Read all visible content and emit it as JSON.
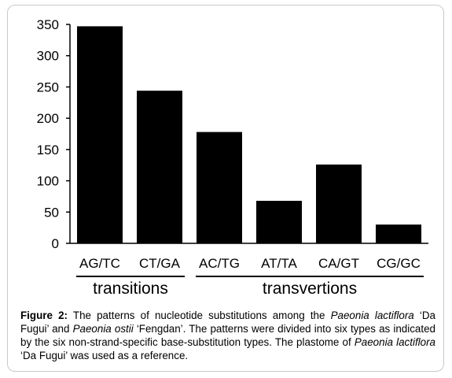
{
  "chart_data": {
    "type": "bar",
    "categories": [
      "AG/TC",
      "CT/GA",
      "AC/TG",
      "AT/TA",
      "CA/GT",
      "CG/GC"
    ],
    "values": [
      347,
      244,
      178,
      68,
      126,
      30
    ],
    "ylim": [
      0,
      350
    ],
    "yticks": [
      "0",
      "50",
      "100",
      "150",
      "200",
      "250",
      "300",
      "350"
    ],
    "bar_color": "#000000",
    "grid": false,
    "groups": [
      {
        "label": "transitions",
        "categories": [
          "AG/TC",
          "CT/GA"
        ]
      },
      {
        "label": "transvertions",
        "categories": [
          "AC/TG",
          "AT/TA",
          "CA/GT",
          "CG/GC"
        ]
      }
    ]
  },
  "caption": {
    "figure_label": "Figure 2:",
    "part1": " The patterns of nucleotide substitutions among the ",
    "species1": "Paeonia lactiflora",
    "part2": " ‘Da Fugui’ and ",
    "species2": "Paeonia ostii",
    "part3": " ‘Fengdan’. The patterns were divided into six types as indicated by the six non-strand-specific base-substitution types. The plastome of ",
    "species3": "Paeonia lactiflora",
    "part4": " ‘Da Fugui’ was used as a reference."
  }
}
